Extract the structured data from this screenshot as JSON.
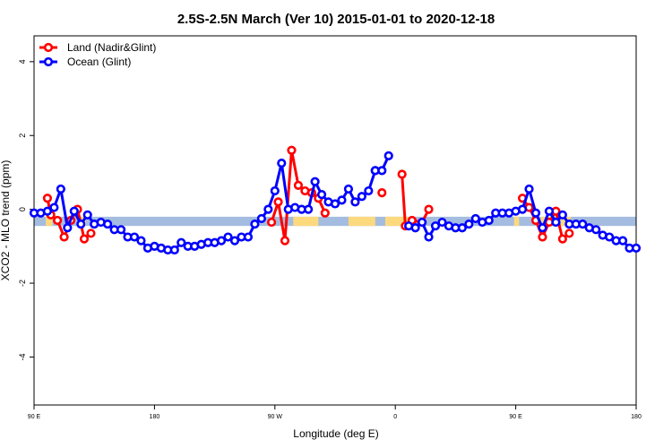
{
  "chart_data": {
    "type": "line",
    "title": "2.5S-2.5N March (Ver 10)   2015-01-01 to 2020-12-18",
    "xlabel": "Longitude (deg E)",
    "ylabel": "XCO2 - MLO trend (ppm)",
    "xlim": [
      90,
      450
    ],
    "ylim": [
      -5.3,
      4.7
    ],
    "x_ticks": [
      90,
      162,
      234,
      306,
      378,
      450
    ],
    "x_tick_labels": [
      "90 E",
      "180",
      "90 W",
      "0",
      "90 E",
      "180"
    ],
    "y_ticks": [
      -4,
      -2,
      0,
      2,
      4
    ],
    "y_tick_labels": [
      "-4",
      "-2",
      "0",
      "2",
      "4"
    ],
    "legend": {
      "placement": "top-left",
      "entries": [
        {
          "name": "Land (Nadir&Glint)",
          "color": "#ff0000"
        },
        {
          "name": "Ocean (Glint)",
          "color": "#0000ff"
        }
      ]
    },
    "band": {
      "y_range": [
        -0.45,
        -0.2
      ],
      "color": "#a4bce0",
      "land_color": "#fdd97e",
      "land_segments": [
        [
          97,
          101
        ],
        [
          116,
          121
        ],
        [
          245,
          260
        ],
        [
          278,
          294
        ],
        [
          300,
          314
        ],
        [
          377,
          380
        ],
        [
          393,
          399
        ],
        [
          405,
          411
        ]
      ]
    },
    "series": [
      {
        "name": "Land (Nadir&Glint)",
        "color": "#ff0000",
        "segments": [
          {
            "x": [
              98,
              100,
              104,
              108,
              112,
              116,
              120,
              124
            ],
            "y": [
              0.3,
              -0.15,
              -0.3,
              -0.75,
              -0.3,
              0.0,
              -0.8,
              -0.65
            ]
          },
          {
            "x": [
              232,
              236,
              240,
              244,
              248,
              252,
              256,
              260,
              264
            ],
            "y": [
              -0.35,
              0.2,
              -0.85,
              1.6,
              0.65,
              0.5,
              0.45,
              0.3,
              -0.1
            ]
          },
          {
            "x": [
              298
            ],
            "y": [
              0.45
            ]
          },
          {
            "x": [
              310,
              312,
              316,
              322,
              326
            ],
            "y": [
              0.95,
              -0.45,
              -0.3,
              -0.35,
              0.0
            ]
          },
          {
            "x": [
              382,
              386,
              390,
              394,
              398,
              402,
              406,
              410
            ],
            "y": [
              0.3,
              0.05,
              -0.3,
              -0.75,
              -0.35,
              -0.05,
              -0.8,
              -0.65
            ]
          }
        ]
      },
      {
        "name": "Ocean (Glint)",
        "color": "#0000ff",
        "segments": [
          {
            "x": [
              90,
              94,
              98,
              102,
              106,
              110,
              114,
              118,
              122,
              126,
              130,
              134,
              138,
              142,
              146,
              150,
              154,
              158,
              162,
              166,
              170,
              174,
              178,
              182,
              186,
              190,
              194,
              198,
              202,
              206,
              210,
              214,
              218,
              222,
              226,
              230,
              234,
              238,
              242,
              246,
              250,
              254,
              258,
              262,
              266,
              270,
              274,
              278,
              282,
              286,
              290,
              294
            ],
            "y": [
              -0.1,
              -0.1,
              -0.05,
              0.05,
              0.55,
              -0.5,
              -0.05,
              -0.4,
              -0.15,
              -0.4,
              -0.35,
              -0.4,
              -0.55,
              -0.55,
              -0.75,
              -0.75,
              -0.85,
              -1.05,
              -1.0,
              -1.05,
              -1.1,
              -1.1,
              -0.9,
              -1.0,
              -1.0,
              -0.95,
              -0.9,
              -0.9,
              -0.85,
              -0.75,
              -0.85,
              -0.75,
              -0.75,
              -0.4,
              -0.25,
              0.0,
              0.5,
              1.25,
              0.0,
              0.05,
              0.0,
              0.0,
              0.75,
              0.4,
              0.2,
              0.15,
              0.25,
              0.55,
              0.2,
              0.35,
              0.5,
              1.05
            ]
          },
          {
            "x": [
              294,
              298,
              302
            ],
            "y": [
              1.05,
              1.05,
              1.45
            ]
          },
          {
            "x": [
              314,
              318,
              322,
              326,
              330,
              334,
              338,
              342,
              346,
              350,
              354,
              358,
              362,
              366,
              370,
              374,
              378,
              382,
              386,
              390,
              394,
              398,
              402,
              406,
              410,
              414,
              418,
              422,
              426,
              430,
              434,
              438,
              442,
              446,
              450
            ],
            "y": [
              -0.45,
              -0.5,
              -0.35,
              -0.75,
              -0.45,
              -0.35,
              -0.45,
              -0.5,
              -0.5,
              -0.4,
              -0.25,
              -0.35,
              -0.3,
              -0.1,
              -0.1,
              -0.1,
              -0.05,
              0.0,
              0.55,
              -0.1,
              -0.5,
              -0.05,
              -0.35,
              -0.15,
              -0.4,
              -0.4,
              -0.4,
              -0.5,
              -0.55,
              -0.7,
              -0.75,
              -0.85,
              -0.85,
              -1.05,
              -1.05
            ]
          }
        ]
      }
    ]
  }
}
